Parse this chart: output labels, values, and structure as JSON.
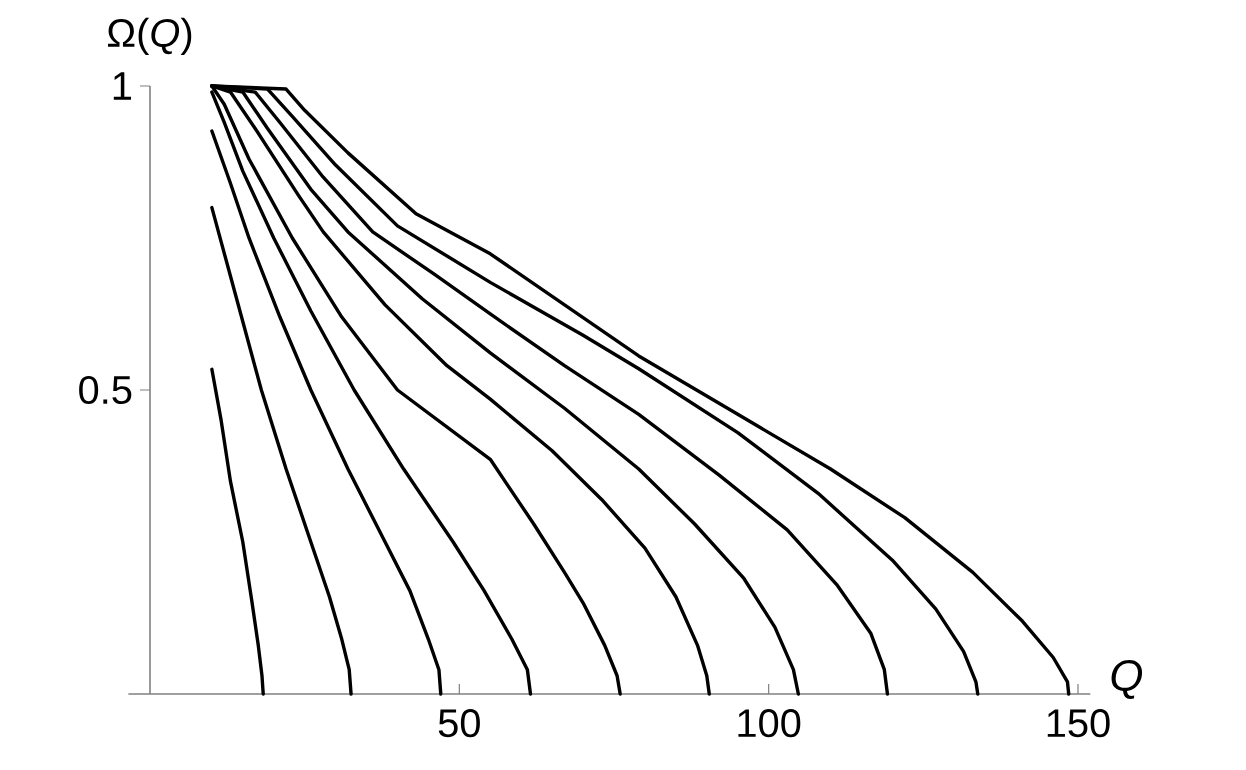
{
  "chart_data": {
    "type": "line",
    "xlabel": "Q",
    "ylabel": "Ω(*Q*)",
    "xlim": [
      -3.5,
      152
    ],
    "ylim": [
      0,
      1
    ],
    "xticks": [
      50,
      100,
      150
    ],
    "yticks": [
      0.5,
      1
    ],
    "series": [
      {
        "color": "#000000",
        "x": [
          10,
          11.5,
          13,
          15,
          16.5,
          17.5,
          18.1,
          18.3
        ],
        "values": [
          0.534,
          0.45,
          0.35,
          0.25,
          0.15,
          0.08,
          0.03,
          0
        ]
      },
      {
        "color": "#000000",
        "x": [
          10,
          14,
          18,
          22,
          26,
          29,
          31,
          32.2,
          32.5
        ],
        "values": [
          0.8,
          0.65,
          0.5,
          0.37,
          0.25,
          0.16,
          0.09,
          0.04,
          0
        ]
      },
      {
        "color": "#000000",
        "x": [
          10,
          13,
          16,
          21,
          26,
          32,
          38,
          42,
          45,
          46.7,
          47
        ],
        "values": [
          0.926,
          0.84,
          0.75,
          0.62,
          0.5,
          0.37,
          0.25,
          0.17,
          0.09,
          0.04,
          0
        ]
      },
      {
        "color": "#000000",
        "x": [
          10,
          12,
          15,
          20,
          26,
          33,
          41,
          49,
          54,
          58.5,
          61,
          61.5
        ],
        "values": [
          0.99,
          0.94,
          0.86,
          0.75,
          0.63,
          0.5,
          0.37,
          0.25,
          0.17,
          0.09,
          0.04,
          0
        ]
      },
      {
        "color": "#000000",
        "x": [
          10,
          12,
          16,
          23,
          31,
          40,
          55,
          62,
          67,
          70,
          73.5,
          75.5,
          76
        ],
        "values": [
          1,
          0.97,
          0.88,
          0.75,
          0.62,
          0.5,
          0.386,
          0.28,
          0.2,
          0.15,
          0.08,
          0.03,
          0
        ]
      },
      {
        "color": "#000000",
        "x": [
          10,
          13,
          17,
          24,
          28,
          38,
          48,
          55,
          65,
          73,
          80,
          85,
          88.5,
          90,
          90.4
        ],
        "values": [
          1,
          0.99,
          0.93,
          0.82,
          0.76,
          0.64,
          0.54,
          0.485,
          0.4,
          0.32,
          0.24,
          0.16,
          0.08,
          0.03,
          0
        ]
      },
      {
        "color": "#000000",
        "x": [
          10,
          15,
          19,
          26,
          32,
          44,
          55,
          67,
          79,
          88,
          96,
          101,
          104,
          104.8
        ],
        "values": [
          1,
          0.99,
          0.93,
          0.83,
          0.76,
          0.65,
          0.561,
          0.47,
          0.37,
          0.28,
          0.19,
          0.11,
          0.04,
          0
        ]
      },
      {
        "color": "#000000",
        "x": [
          10,
          17,
          21,
          28,
          36,
          46,
          55,
          67,
          79,
          92,
          103,
          111,
          116.5,
          118.7,
          119.2
        ],
        "values": [
          1,
          0.99,
          0.94,
          0.85,
          0.76,
          0.69,
          0.625,
          0.54,
          0.46,
          0.36,
          0.27,
          0.18,
          0.1,
          0.04,
          0
        ]
      },
      {
        "color": "#000000",
        "x": [
          10,
          19,
          23,
          30,
          40,
          55,
          70,
          79,
          95,
          108,
          120,
          127,
          131.5,
          133.5,
          133.8
        ],
        "values": [
          1,
          0.995,
          0.95,
          0.87,
          0.77,
          0.677,
          0.59,
          0.535,
          0.43,
          0.33,
          0.22,
          0.14,
          0.07,
          0.02,
          0
        ]
      },
      {
        "color": "#000000",
        "x": [
          10,
          22,
          25,
          32,
          43,
          55,
          79,
          95,
          110,
          122,
          133,
          141,
          146,
          148.3,
          148.5
        ],
        "values": [
          1,
          0.995,
          0.96,
          0.89,
          0.79,
          0.724,
          0.556,
          0.46,
          0.37,
          0.29,
          0.2,
          0.12,
          0.06,
          0.02,
          0
        ]
      }
    ]
  }
}
